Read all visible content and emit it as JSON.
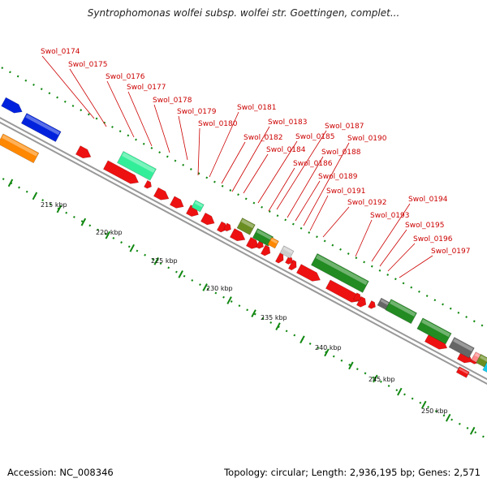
{
  "title": "Syntrophomonas wolfei subsp. wolfei str. Goettingen, complet...",
  "footer": {
    "accession": "Accession: NC_008346",
    "info": "Topology: circular; Length: 2,936,195 bp; Genes: 2,571"
  },
  "colors": {
    "gene_red": "#ee1111",
    "green": "#228b22",
    "olive": "#6b8e23",
    "aquamarine": "#33ee99",
    "orange": "#ff8800",
    "blue": "#0022dd",
    "grey": "#666666",
    "light_grey": "#cccccc",
    "pink": "#ff8888",
    "cyan": "#11ccee",
    "label": "#cc0000",
    "tick": "#118811"
  },
  "scale_labels": [
    "215 kbp",
    "220 kbp",
    "225 kbp",
    "230 kbp",
    "235 kbp",
    "240 kbp",
    "245 kbp",
    "250 kbp"
  ],
  "gene_labels": [
    "Swol_0174",
    "Swol_0175",
    "Swol_0176",
    "Swol_0177",
    "Swol_0178",
    "Swol_0179",
    "Swol_0180",
    "Swol_0181",
    "Swol_0182",
    "Swol_0183",
    "Swol_0184",
    "Swol_0185",
    "Swol_0186",
    "Swol_0187",
    "Swol_0188",
    "Swol_0189",
    "Swol_0190",
    "Swol_0191",
    "Swol_0192",
    "Swol_0193",
    "Swol_0194",
    "Swol_0195",
    "Swol_0196",
    "Swol_0197"
  ]
}
